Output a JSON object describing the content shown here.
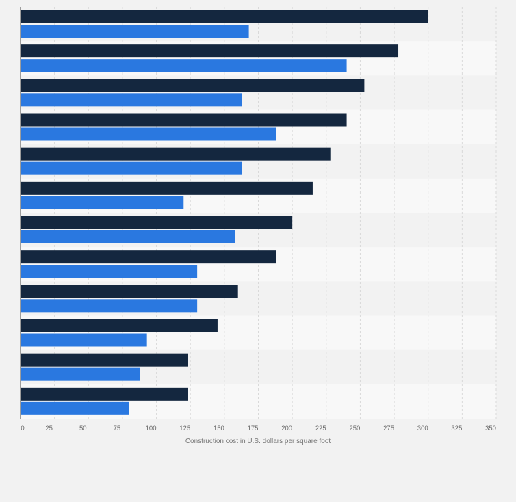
{
  "chart_data": {
    "type": "bar",
    "orientation": "horizontal",
    "title": "",
    "xlabel": "Construction cost in U.S. dollars per square foot",
    "ylabel": "",
    "xlim": [
      0,
      350
    ],
    "ticks": [
      0,
      25,
      50,
      75,
      100,
      125,
      150,
      175,
      200,
      225,
      250,
      275,
      300,
      325,
      350
    ],
    "grid": true,
    "categories": [
      "",
      "",
      "",
      "",
      "",
      "",
      "",
      "",
      "",
      "",
      "",
      ""
    ],
    "series": [
      {
        "color": "#14273f",
        "values": [
          300,
          278,
          253,
          240,
          228,
          215,
          200,
          188,
          160,
          145,
          123,
          123
        ]
      },
      {
        "color": "#2a78e0",
        "values": [
          168,
          240,
          163,
          188,
          163,
          120,
          158,
          130,
          130,
          93,
          88,
          80
        ]
      }
    ]
  },
  "colors": {
    "band_dark": "#f2f2f2",
    "band_light": "#f8f8f8",
    "grid": "#d9d9d9",
    "axis": "#4a4a4a",
    "tick_text": "#666666",
    "label_text": "#777777"
  }
}
